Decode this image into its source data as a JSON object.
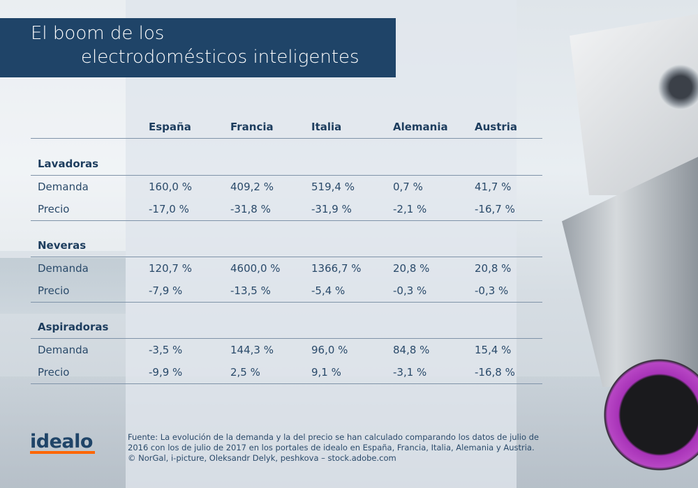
{
  "title": {
    "line1": "El boom de los",
    "line2": "electrodomésticos inteligentes"
  },
  "columns": [
    "España",
    "Francia",
    "Italia",
    "Alemania",
    "Austria"
  ],
  "groups": [
    {
      "name": "Lavadoras",
      "rows": [
        {
          "label": "Demanda",
          "values": [
            "160,0 %",
            "409,2 %",
            "519,4 %",
            "0,7 %",
            "41,7 %"
          ]
        },
        {
          "label": "Precio",
          "values": [
            "-17,0 %",
            "-31,8 %",
            "-31,9 %",
            "-2,1 %",
            "-16,7 %"
          ]
        }
      ]
    },
    {
      "name": "Neveras",
      "rows": [
        {
          "label": "Demanda",
          "values": [
            "120,7 %",
            "4600,0 %",
            "1366,7 %",
            "20,8 %",
            "20,8 %"
          ]
        },
        {
          "label": "Precio",
          "values": [
            "-7,9 %",
            "-13,5 %",
            "-5,4 %",
            "-0,3 %",
            "-0,3 %"
          ]
        }
      ]
    },
    {
      "name": "Aspiradoras",
      "rows": [
        {
          "label": "Demanda",
          "values": [
            "-3,5 %",
            "144,3 %",
            "96,0 %",
            "84,8 %",
            "15,4 %"
          ]
        },
        {
          "label": "Precio",
          "values": [
            "-9,9 %",
            "2,5 %",
            "9,1 %",
            "-3,1 %",
            "-16,8 %"
          ]
        }
      ]
    }
  ],
  "footer": {
    "logo": "idealo",
    "note_line1": "Fuente: La evolución de la demanda y la del precio se han calculado comparando los datos de julio de",
    "note_line2": "2016 con los de julio de 2017 en los portales de idealo en España, Francia, Italia, Alemania y Austria.",
    "credits": "© NorGal, i-picture, Oleksandr Delyk, peshkova – stock.adobe.com"
  },
  "colors": {
    "title_bg": "#1f4468",
    "text": "#1d3d5e",
    "logo_accent": "#ff6600"
  }
}
